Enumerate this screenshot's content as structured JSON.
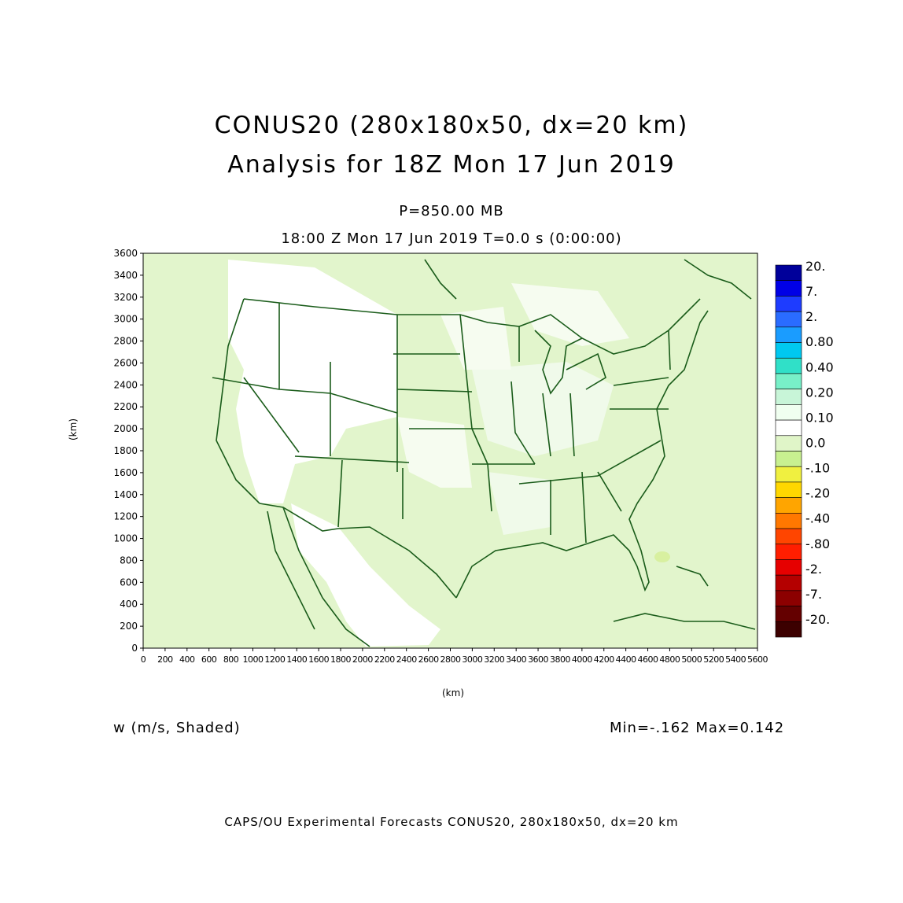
{
  "header": {
    "title_line1": "CONUS20 (280x180x50, dx=20 km)",
    "title_line2": "Analysis for 18Z Mon 17 Jun 2019",
    "level": "P=850.00 MB",
    "valid_time": "18:00 Z Mon 17 Jun 2019    T=0.0 s (0:00:00)"
  },
  "axes": {
    "ylabel": "(km)",
    "xlabel": "(km)",
    "x_range": [
      0,
      5600
    ],
    "y_range": [
      0,
      3600
    ],
    "x_ticks": [
      "0",
      "200",
      "400",
      "600",
      "800",
      "1000",
      "1200",
      "1400",
      "1600",
      "1800",
      "2000",
      "2200",
      "2400",
      "2600",
      "2800",
      "3000",
      "3200",
      "3400",
      "3600",
      "3800",
      "4000",
      "4200",
      "4400",
      "4600",
      "4800",
      "5000",
      "5200",
      "5400",
      "5600"
    ],
    "y_ticks": [
      "0",
      "200",
      "400",
      "600",
      "800",
      "1000",
      "1200",
      "1400",
      "1600",
      "1800",
      "2000",
      "2200",
      "2400",
      "2600",
      "2800",
      "3000",
      "3200",
      "3400",
      "3600"
    ]
  },
  "colorbar": {
    "labels": [
      "20.",
      "7.",
      "2.",
      "0.80",
      "0.40",
      "0.20",
      "0.10",
      "0.0",
      "-.10",
      "-.20",
      "-.40",
      "-.80",
      "-2.",
      "-7.",
      "-20."
    ],
    "colors": [
      "#00009a",
      "#0000e6",
      "#1e3cff",
      "#2a6cff",
      "#1a9cff",
      "#00c8f0",
      "#30e0c8",
      "#78f0c8",
      "#c8f5d8",
      "#f0fff0",
      "#ffffff",
      "#e0f5c8",
      "#c8f090",
      "#f0f040",
      "#ffd700",
      "#ffa500",
      "#ff7800",
      "#ff4500",
      "#ff1e00",
      "#e60000",
      "#b40000",
      "#8c0000",
      "#640000",
      "#3c0000"
    ]
  },
  "field": {
    "label": "w (m/s, Shaded)",
    "minmax": "Min=-.162 Max=0.142"
  },
  "footer": "CAPS/OU Experimental Forecasts  CONUS20, 280x180x50, dx=20 km",
  "map": {
    "background_fill": "#e2f5cc",
    "light_fill": "#f2fbe9",
    "boundary_color": "#1a5c1a"
  }
}
